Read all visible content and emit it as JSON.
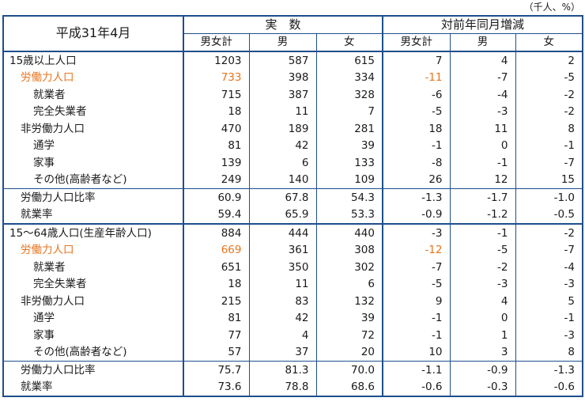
{
  "unit_note": "（千人、%）",
  "header": {
    "period": "平成31年4月",
    "group_actual": "実　数",
    "group_change": "対前年同月増減",
    "cols": [
      "男女計",
      "男",
      "女",
      "男女計",
      "男",
      "女"
    ]
  },
  "rows": [
    {
      "label": "15歳以上人口",
      "level": 0,
      "highlight": false,
      "v": [
        "1203",
        "587",
        "615",
        "7",
        "4",
        "2"
      ]
    },
    {
      "label": "労働力人口",
      "level": 1,
      "highlight": true,
      "v": [
        "733",
        "398",
        "334",
        "-11",
        "-7",
        "-5"
      ]
    },
    {
      "label": "就業者",
      "level": 2,
      "highlight": false,
      "v": [
        "715",
        "387",
        "328",
        "-6",
        "-4",
        "-2"
      ]
    },
    {
      "label": "完全失業者",
      "level": 2,
      "highlight": false,
      "v": [
        "18",
        "11",
        "7",
        "-5",
        "-3",
        "-2"
      ]
    },
    {
      "label": "非労働力人口",
      "level": 1,
      "highlight": false,
      "v": [
        "470",
        "189",
        "281",
        "18",
        "11",
        "8"
      ]
    },
    {
      "label": "通学",
      "level": 2,
      "highlight": false,
      "v": [
        "81",
        "42",
        "39",
        "-1",
        "0",
        "-1"
      ]
    },
    {
      "label": "家事",
      "level": 2,
      "highlight": false,
      "v": [
        "139",
        "6",
        "133",
        "-8",
        "-1",
        "-7"
      ]
    },
    {
      "label": "その他(高齢者など)",
      "level": 2,
      "highlight": false,
      "v": [
        "249",
        "140",
        "109",
        "26",
        "12",
        "15"
      ]
    },
    {
      "label": "労働力人口比率",
      "level": 1,
      "highlight": false,
      "v": [
        "60.9",
        "67.8",
        "54.3",
        "-1.3",
        "-1.7",
        "-1.0"
      ]
    },
    {
      "label": "就業率",
      "level": 1,
      "highlight": false,
      "v": [
        "59.4",
        "65.9",
        "53.3",
        "-0.9",
        "-1.2",
        "-0.5"
      ]
    },
    {
      "label": "15～64歳人口(生産年齢人口)",
      "level": 0,
      "highlight": false,
      "v": [
        "884",
        "444",
        "440",
        "-3",
        "-1",
        "-2"
      ]
    },
    {
      "label": "労働力人口",
      "level": 1,
      "highlight": true,
      "v": [
        "669",
        "361",
        "308",
        "-12",
        "-5",
        "-7"
      ]
    },
    {
      "label": "就業者",
      "level": 2,
      "highlight": false,
      "v": [
        "651",
        "350",
        "302",
        "-7",
        "-2",
        "-4"
      ]
    },
    {
      "label": "完全失業者",
      "level": 2,
      "highlight": false,
      "v": [
        "18",
        "11",
        "6",
        "-5",
        "-3",
        "-3"
      ]
    },
    {
      "label": "非労働力人口",
      "level": 1,
      "highlight": false,
      "v": [
        "215",
        "83",
        "132",
        "9",
        "4",
        "5"
      ]
    },
    {
      "label": "通学",
      "level": 2,
      "highlight": false,
      "v": [
        "81",
        "42",
        "39",
        "-1",
        "0",
        "-1"
      ]
    },
    {
      "label": "家事",
      "level": 2,
      "highlight": false,
      "v": [
        "77",
        "4",
        "72",
        "-1",
        "1",
        "-3"
      ]
    },
    {
      "label": "その他(高齢者など)",
      "level": 2,
      "highlight": false,
      "v": [
        "57",
        "37",
        "20",
        "10",
        "3",
        "8"
      ]
    },
    {
      "label": "労働力人口比率",
      "level": 1,
      "highlight": false,
      "v": [
        "75.7",
        "81.3",
        "70.0",
        "-1.1",
        "-0.9",
        "-1.3"
      ]
    },
    {
      "label": "就業率",
      "level": 1,
      "highlight": false,
      "v": [
        "73.6",
        "78.8",
        "68.6",
        "-0.6",
        "-0.3",
        "-0.6"
      ]
    }
  ],
  "colors": {
    "border": "#1e4e8c",
    "highlight": "#e8741e"
  }
}
